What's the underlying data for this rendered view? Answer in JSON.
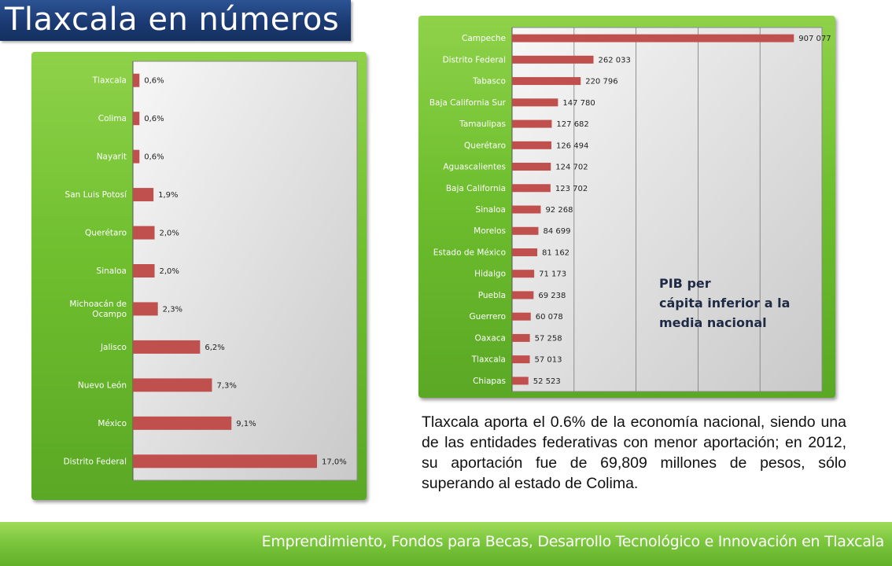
{
  "header": {
    "title": "Tlaxcala en números"
  },
  "footer": {
    "text": "Emprendimiento, Fondos para Becas, Desarrollo Tecnológico e Innovación en Tlaxcala"
  },
  "caption": {
    "text": "Tlaxcala aporta el 0.6% de la economía nacional, siendo una de las entidades federativas con menor aportación; en 2012, su aportación fue de 69,809 millones de pesos, sólo superando al estado de Colima."
  },
  "colors": {
    "bar": "#c0504d",
    "panel_green": "#6fbf2f",
    "title_bg": "#1b3a73"
  },
  "chart_data": [
    {
      "type": "bar",
      "orientation": "horizontal",
      "categories": [
        "Tlaxcala",
        "Colima",
        "Nayarit",
        "San Luis Potosí",
        "Querétaro",
        "Sinaloa",
        "Michoacán de Ocampo",
        "Jalisco",
        "Nuevo León",
        "México",
        "Distrito Federal"
      ],
      "values": [
        0.6,
        0.6,
        0.6,
        1.9,
        2.0,
        2.0,
        2.3,
        6.2,
        7.3,
        9.1,
        17.0
      ],
      "value_labels": [
        "0,6%",
        "0,6%",
        "0,6%",
        "1,9%",
        "2,0%",
        "2,0%",
        "2,3%",
        "6,2%",
        "7,3%",
        "9,1%",
        "17,0%"
      ],
      "xlim": [
        0,
        17.0
      ],
      "grid": false
    },
    {
      "type": "bar",
      "orientation": "horizontal",
      "categories": [
        "Campeche",
        "Distrito Federal",
        "Tabasco",
        "Baja California Sur",
        "Tamaulipas",
        "Querétaro",
        "Aguascalientes",
        "Baja California",
        "Sinaloa",
        "Morelos",
        "Estado de México",
        "Hidalgo",
        "Puebla",
        "Guerrero",
        "Oaxaca",
        "Tlaxcala",
        "Chiapas"
      ],
      "values": [
        907077,
        262033,
        220796,
        147780,
        127682,
        126494,
        124702,
        123702,
        92268,
        84699,
        81162,
        71173,
        69238,
        60078,
        57258,
        57013,
        52523
      ],
      "value_labels": [
        "907 077",
        "262 033",
        "220 796",
        "147 780",
        "127 682",
        "126 494",
        "124 702",
        "123 702",
        "92 268",
        "84 699",
        "81 162",
        "71 173",
        "69 238",
        "60 078",
        "57 258",
        "57 013",
        "52 523"
      ],
      "xlim": [
        0,
        1000000
      ],
      "grid": true,
      "annotation": "PIB per cápita inferior a la media nacional"
    }
  ]
}
